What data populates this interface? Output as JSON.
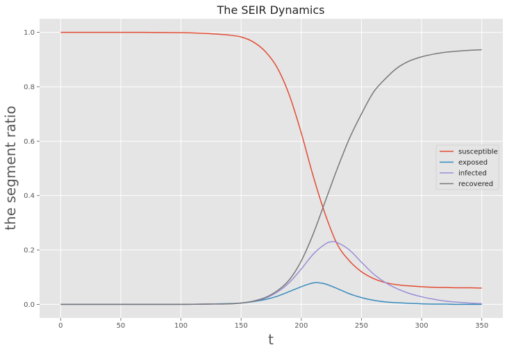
{
  "chart_data": {
    "type": "line",
    "title": "The SEIR Dynamics",
    "xlabel": "t",
    "ylabel": "the segment ratio",
    "xlim": [
      -17.5,
      367.5
    ],
    "ylim": [
      -0.05,
      1.05
    ],
    "xticks": [
      0,
      50,
      100,
      150,
      200,
      250,
      300,
      350
    ],
    "yticks": [
      0.0,
      0.2,
      0.4,
      0.6,
      0.8,
      1.0
    ],
    "xtick_labels": [
      "0",
      "50",
      "100",
      "150",
      "200",
      "250",
      "300",
      "350"
    ],
    "ytick_labels": [
      "0.0",
      "0.2",
      "0.4",
      "0.6",
      "0.8",
      "1.0"
    ],
    "grid": true,
    "legend_position": "center-right",
    "series": [
      {
        "name": "susceptible",
        "color": "#E24A33",
        "x": [
          0,
          50,
          100,
          120,
          140,
          150,
          160,
          170,
          180,
          190,
          200,
          210,
          220,
          230,
          240,
          250,
          260,
          270,
          280,
          290,
          300,
          310,
          320,
          330,
          340,
          350
        ],
        "y": [
          1.0,
          1.0,
          0.999,
          0.996,
          0.99,
          0.983,
          0.965,
          0.93,
          0.87,
          0.77,
          0.63,
          0.47,
          0.33,
          0.22,
          0.16,
          0.12,
          0.095,
          0.08,
          0.072,
          0.068,
          0.065,
          0.063,
          0.062,
          0.061,
          0.061,
          0.06
        ]
      },
      {
        "name": "exposed",
        "color": "#348ABD",
        "x": [
          0,
          50,
          100,
          120,
          140,
          150,
          160,
          170,
          180,
          190,
          200,
          205,
          210,
          213,
          220,
          230,
          240,
          250,
          260,
          270,
          280,
          290,
          300,
          310,
          320,
          330,
          340,
          350
        ],
        "y": [
          0.0,
          0.0,
          0.0,
          0.001,
          0.003,
          0.005,
          0.01,
          0.018,
          0.03,
          0.047,
          0.065,
          0.073,
          0.079,
          0.08,
          0.075,
          0.058,
          0.039,
          0.025,
          0.015,
          0.009,
          0.006,
          0.004,
          0.002,
          0.001,
          0.001,
          0.0,
          0.0,
          0.0
        ]
      },
      {
        "name": "infected",
        "color": "#988ED5",
        "x": [
          0,
          50,
          100,
          120,
          140,
          150,
          160,
          170,
          180,
          190,
          200,
          210,
          220,
          225,
          230,
          240,
          250,
          260,
          270,
          280,
          290,
          300,
          310,
          320,
          330,
          340,
          350
        ],
        "y": [
          0.0,
          0.0,
          0.0,
          0.001,
          0.002,
          0.005,
          0.011,
          0.023,
          0.045,
          0.08,
          0.13,
          0.185,
          0.222,
          0.23,
          0.227,
          0.2,
          0.155,
          0.112,
          0.08,
          0.057,
          0.04,
          0.028,
          0.019,
          0.012,
          0.008,
          0.005,
          0.003
        ]
      },
      {
        "name": "recovered",
        "color": "#777777",
        "x": [
          0,
          50,
          100,
          120,
          140,
          150,
          160,
          170,
          180,
          190,
          200,
          210,
          220,
          230,
          240,
          250,
          260,
          270,
          280,
          290,
          300,
          310,
          320,
          330,
          340,
          350
        ],
        "y": [
          0.0,
          0.0,
          0.0,
          0.001,
          0.002,
          0.005,
          0.012,
          0.025,
          0.05,
          0.09,
          0.16,
          0.26,
          0.38,
          0.5,
          0.61,
          0.7,
          0.78,
          0.83,
          0.87,
          0.895,
          0.91,
          0.92,
          0.927,
          0.931,
          0.934,
          0.936
        ]
      }
    ]
  }
}
